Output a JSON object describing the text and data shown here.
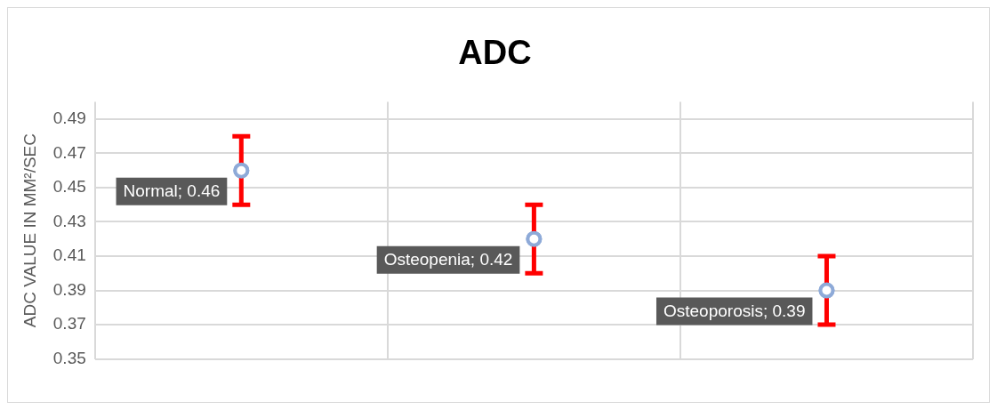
{
  "chart_data": {
    "type": "scatter",
    "title": "ADC",
    "ylabel": "ADC VALUE IN MM²/SEC",
    "categories": [
      null,
      null,
      null
    ],
    "ylim": [
      0.35,
      0.5
    ],
    "yticks": [
      0.35,
      0.37,
      0.39,
      0.41,
      0.43,
      0.45,
      0.47,
      0.49
    ],
    "series": [
      {
        "color": "#8eaad8",
        "values": [
          0.46,
          0.42,
          0.39
        ],
        "errors": [
          0.02,
          0.02,
          0.02
        ],
        "value_labels": [
          "Normal; 0.46",
          "Osteopenia; 0.42",
          "Osteoporosis; 0.39"
        ]
      }
    ],
    "grid": true,
    "legend": false,
    "marker": "circle"
  }
}
